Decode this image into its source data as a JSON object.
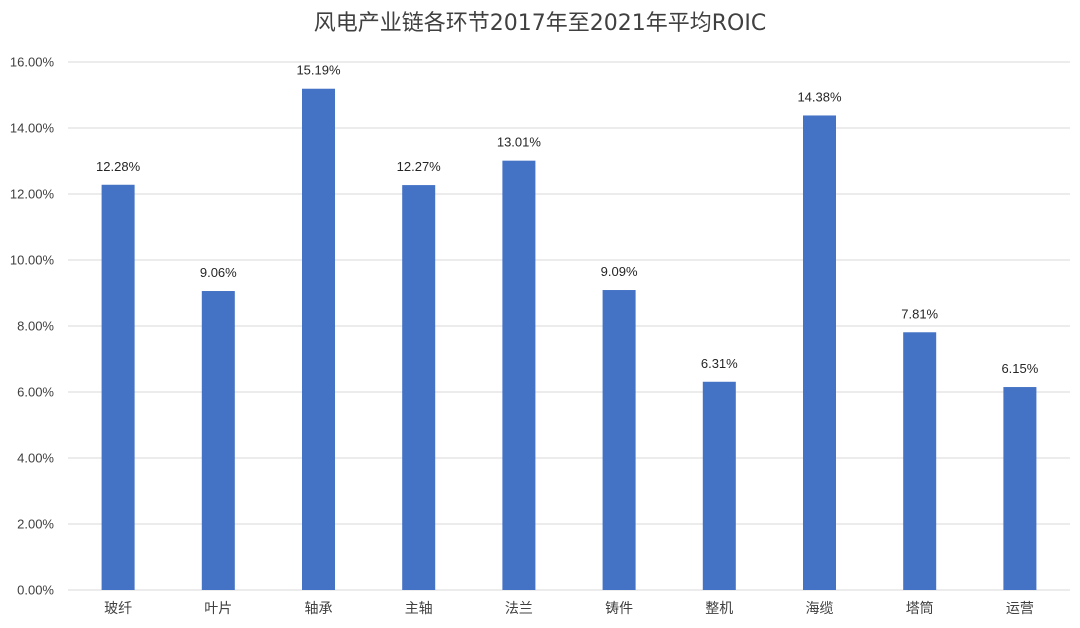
{
  "chart_data": {
    "type": "bar",
    "title": "风电产业链各环节2017年至2021年平均ROIC",
    "xlabel": "",
    "ylabel": "",
    "categories": [
      "玻纤",
      "叶片",
      "轴承",
      "主轴",
      "法兰",
      "铸件",
      "整机",
      "海缆",
      "塔筒",
      "运营"
    ],
    "series": [
      {
        "values": [
          12.28,
          9.06,
          15.19,
          12.27,
          13.01,
          9.09,
          6.31,
          14.38,
          7.81,
          6.15
        ],
        "data_labels": [
          "12.28%",
          "9.06%",
          "15.19%",
          "12.27%",
          "13.01%",
          "9.09%",
          "6.31%",
          "14.38%",
          "7.81%",
          "6.15%"
        ]
      }
    ],
    "ylim": [
      0,
      16
    ],
    "y_ticks": [
      0,
      2,
      4,
      6,
      8,
      10,
      12,
      14,
      16
    ],
    "y_tick_labels": [
      "0.00%",
      "2.00%",
      "4.00%",
      "6.00%",
      "8.00%",
      "10.00%",
      "12.00%",
      "14.00%",
      "16.00%"
    ],
    "grid": true,
    "legend": "none",
    "colors": {
      "bar": "#4472C4",
      "grid": "#D9D9D9",
      "text": "#404040"
    }
  }
}
